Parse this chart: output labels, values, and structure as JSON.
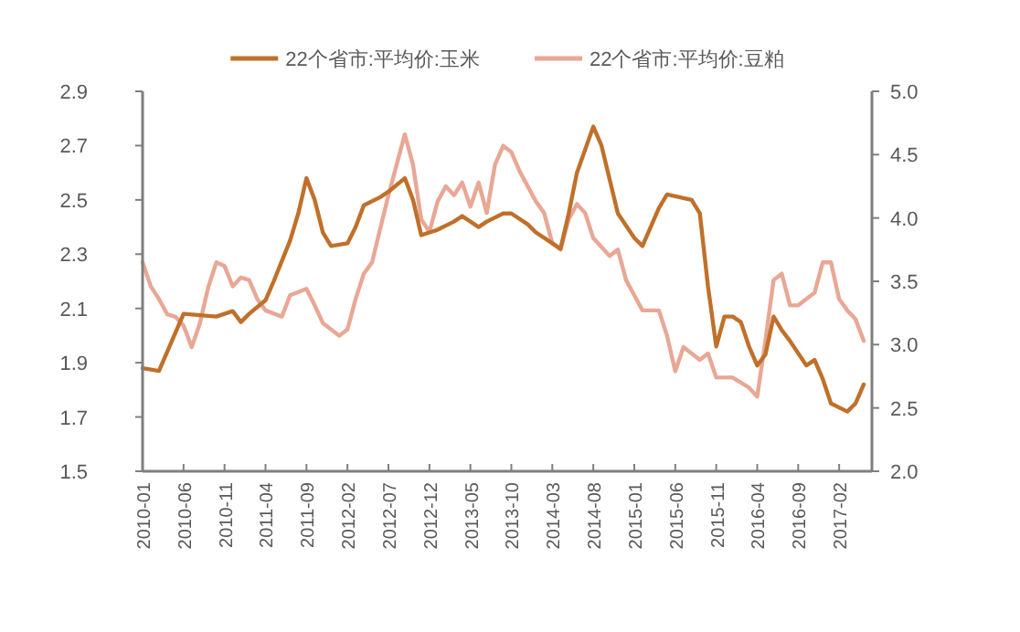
{
  "chart_data": {
    "type": "line",
    "legend": "top",
    "xlim": [
      "2010-01",
      "2017-06"
    ],
    "xticks": [
      "2010-01",
      "2010-06",
      "2010-11",
      "2011-04",
      "2011-09",
      "2012-02",
      "2012-07",
      "2012-12",
      "2013-05",
      "2013-10",
      "2014-03",
      "2014-08",
      "2015-01",
      "2015-06",
      "2015-11",
      "2016-04",
      "2016-09",
      "2017-02"
    ],
    "ylim": [
      1.5,
      2.9
    ],
    "yticks": [
      1.5,
      1.7,
      1.9,
      2.1,
      2.3,
      2.5,
      2.7,
      2.9
    ],
    "y2lim": [
      2.0,
      5.0
    ],
    "y2ticks": [
      {
        "value": 2.0,
        "label": "2.0"
      },
      {
        "value": 2.5,
        "label": "2.5"
      },
      {
        "value": 3.0,
        "label": "3.0"
      },
      {
        "value": 3.5,
        "label": "3.5"
      },
      {
        "value": 4.0,
        "label": "4.0"
      },
      {
        "value": 4.5,
        "label": "4.5"
      },
      {
        "value": 5.0,
        "label": "5.0"
      }
    ],
    "series": [
      {
        "name": "22个省市:平均价:玉米",
        "color": "#c0702a",
        "x": [
          "2010-01",
          "2010-03",
          "2010-06",
          "2010-10",
          "2010-12",
          "2011-01",
          "2011-02",
          "2011-04",
          "2011-05",
          "2011-07",
          "2011-08",
          "2011-09",
          "2011-10",
          "2011-11",
          "2011-12",
          "2012-02",
          "2012-03",
          "2012-04",
          "2012-06",
          "2012-07",
          "2012-09",
          "2012-10",
          "2012-11",
          "2013-01",
          "2013-03",
          "2013-04",
          "2013-06",
          "2013-07",
          "2013-09",
          "2013-10",
          "2013-12",
          "2014-01",
          "2014-03",
          "2014-04",
          "2014-05",
          "2014-06",
          "2014-08",
          "2014-09",
          "2014-11",
          "2015-01",
          "2015-02",
          "2015-04",
          "2015-05",
          "2015-08",
          "2015-09",
          "2015-10",
          "2015-11",
          "2015-12",
          "2016-01",
          "2016-02",
          "2016-03",
          "2016-04",
          "2016-05",
          "2016-06",
          "2016-07",
          "2016-08",
          "2016-10",
          "2016-11",
          "2016-12",
          "2017-01",
          "2017-03",
          "2017-04",
          "2017-05"
        ],
        "values": [
          1.88,
          1.87,
          2.08,
          2.07,
          2.09,
          2.05,
          2.08,
          2.13,
          2.2,
          2.35,
          2.45,
          2.58,
          2.5,
          2.38,
          2.33,
          2.34,
          2.4,
          2.48,
          2.51,
          2.53,
          2.58,
          2.5,
          2.37,
          2.39,
          2.42,
          2.44,
          2.4,
          2.42,
          2.45,
          2.45,
          2.41,
          2.38,
          2.34,
          2.32,
          2.45,
          2.6,
          2.77,
          2.7,
          2.45,
          2.36,
          2.33,
          2.47,
          2.52,
          2.5,
          2.45,
          2.18,
          1.96,
          2.07,
          2.07,
          2.05,
          1.96,
          1.89,
          1.93,
          2.07,
          2.02,
          1.98,
          1.89,
          1.91,
          1.84,
          1.75,
          1.72,
          1.75,
          1.82
        ]
      },
      {
        "name": "22个省市:平均价:豆粕",
        "color": "#e9a795",
        "axis": "y2",
        "x": [
          "2010-01",
          "2010-02",
          "2010-03",
          "2010-04",
          "2010-05",
          "2010-06",
          "2010-07",
          "2010-08",
          "2010-09",
          "2010-10",
          "2010-11",
          "2010-12",
          "2011-01",
          "2011-02",
          "2011-03",
          "2011-04",
          "2011-06",
          "2011-07",
          "2011-09",
          "2011-10",
          "2011-11",
          "2012-01",
          "2012-02",
          "2012-03",
          "2012-04",
          "2012-05",
          "2012-07",
          "2012-08",
          "2012-09",
          "2012-10",
          "2012-11",
          "2012-12",
          "2013-01",
          "2013-02",
          "2013-03",
          "2013-04",
          "2013-05",
          "2013-06",
          "2013-07",
          "2013-08",
          "2013-09",
          "2013-10",
          "2013-11",
          "2014-01",
          "2014-02",
          "2014-03",
          "2014-04",
          "2014-05",
          "2014-06",
          "2014-07",
          "2014-08",
          "2014-10",
          "2014-11",
          "2014-12",
          "2015-01",
          "2015-02",
          "2015-04",
          "2015-05",
          "2015-06",
          "2015-07",
          "2015-09",
          "2015-10",
          "2015-11",
          "2016-01",
          "2016-03",
          "2016-04",
          "2016-05",
          "2016-06",
          "2016-07",
          "2016-08",
          "2016-09",
          "2016-11",
          "2016-12",
          "2017-01",
          "2017-02",
          "2017-03",
          "2017-04",
          "2017-05"
        ],
        "values": [
          3.65,
          3.46,
          3.36,
          3.24,
          3.22,
          3.15,
          2.98,
          3.17,
          3.45,
          3.65,
          3.62,
          3.46,
          3.53,
          3.51,
          3.36,
          3.27,
          3.22,
          3.39,
          3.44,
          3.31,
          3.17,
          3.07,
          3.12,
          3.36,
          3.56,
          3.65,
          4.18,
          4.42,
          4.66,
          4.42,
          3.99,
          3.89,
          4.13,
          4.25,
          4.18,
          4.28,
          4.09,
          4.28,
          4.04,
          4.42,
          4.57,
          4.52,
          4.37,
          4.13,
          4.04,
          3.8,
          3.75,
          3.99,
          4.11,
          4.04,
          3.84,
          3.7,
          3.75,
          3.51,
          3.39,
          3.27,
          3.27,
          3.07,
          2.79,
          2.98,
          2.88,
          2.93,
          2.74,
          2.74,
          2.66,
          2.59,
          3.03,
          3.51,
          3.56,
          3.31,
          3.31,
          3.41,
          3.65,
          3.65,
          3.36,
          3.27,
          3.2,
          3.03
        ]
      }
    ]
  }
}
